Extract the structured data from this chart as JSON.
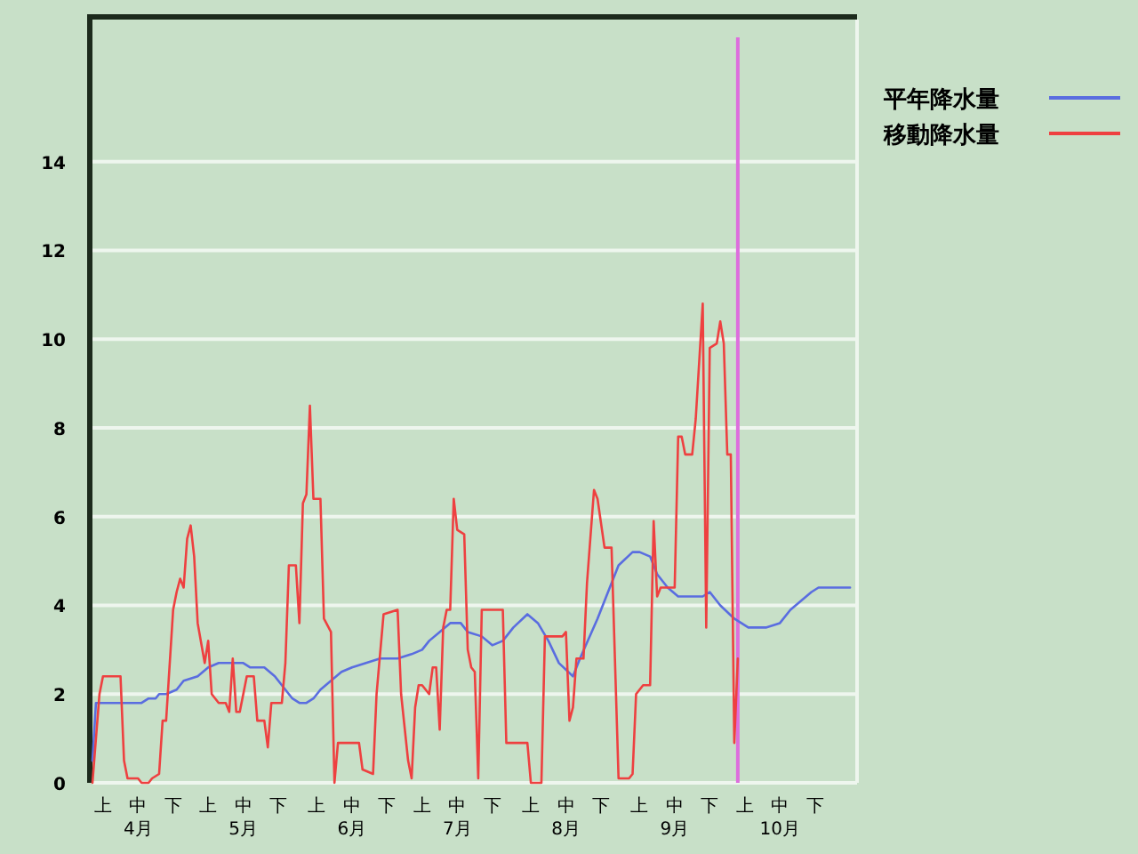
{
  "chart_data": {
    "type": "line",
    "series": [
      {
        "name": "平年降水量",
        "color": "#5a6de0",
        "x": [
          "--04-02",
          "--04-03",
          "--04-16",
          "--04-18",
          "--04-20",
          "--04-21",
          "--04-23",
          "--04-26",
          "--04-28",
          "--05-02",
          "--05-05",
          "--05-08",
          "--05-15",
          "--05-17",
          "--05-21",
          "--05-24",
          "--05-26",
          "--05-29",
          "--05-31",
          "--06-02",
          "--06-04",
          "--06-06",
          "--06-09",
          "--06-12",
          "--06-15",
          "--06-19",
          "--06-23",
          "--06-25",
          "--06-28",
          "--07-02",
          "--07-05",
          "--07-07",
          "--07-10",
          "--07-13",
          "--07-16",
          "--07-18",
          "--07-22",
          "--07-25",
          "--07-28",
          "--07-31",
          "--08-04",
          "--08-07",
          "--08-10",
          "--08-13",
          "--08-17",
          "--08-19",
          "--08-24",
          "--08-27",
          "--08-30",
          "--09-03",
          "--09-05",
          "--09-08",
          "--09-10",
          "--09-13",
          "--09-16",
          "--09-19",
          "--09-23",
          "--09-25",
          "--09-28",
          "--10-02",
          "--10-06",
          "--10-11",
          "--10-15",
          "--10-18",
          "--10-21",
          "--10-24",
          "--10-26",
          "--11-02",
          "--11-04"
        ],
        "values": [
          0.5,
          1.8,
          1.8,
          1.9,
          1.9,
          2.0,
          2.0,
          2.1,
          2.3,
          2.4,
          2.6,
          2.7,
          2.7,
          2.6,
          2.6,
          2.4,
          2.2,
          1.9,
          1.8,
          1.8,
          1.9,
          2.1,
          2.3,
          2.5,
          2.6,
          2.7,
          2.8,
          2.8,
          2.8,
          2.9,
          3.0,
          3.2,
          3.4,
          3.6,
          3.6,
          3.4,
          3.3,
          3.1,
          3.2,
          3.5,
          3.8,
          3.6,
          3.2,
          2.7,
          2.4,
          2.8,
          3.7,
          4.3,
          4.9,
          5.2,
          5.2,
          5.1,
          4.7,
          4.4,
          4.2,
          4.2,
          4.2,
          4.3,
          4.0,
          3.7,
          3.5,
          3.5,
          3.6,
          3.9,
          4.1,
          4.3,
          4.4,
          4.4,
          4.4
        ]
      },
      {
        "name": "移動降水量",
        "color": "#ee4040",
        "x": [
          "--04-02",
          "--04-04",
          "--04-05",
          "--04-10",
          "--04-11",
          "--04-12",
          "--04-15",
          "--04-16",
          "--04-18",
          "--04-19",
          "--04-21",
          "--04-22",
          "--04-23",
          "--04-25",
          "--04-26",
          "--04-27",
          "--04-28",
          "--04-29",
          "--04-30",
          "--05-01",
          "--05-02",
          "--05-04",
          "--05-05",
          "--05-06",
          "--05-08",
          "--05-10",
          "--05-11",
          "--05-12",
          "--05-13",
          "--05-14",
          "--05-16",
          "--05-18",
          "--05-19",
          "--05-21",
          "--05-22",
          "--05-23",
          "--05-26",
          "--05-27",
          "--05-28",
          "--05-30",
          "--05-31",
          "--06-01",
          "--06-02",
          "--06-03",
          "--06-04",
          "--06-06",
          "--06-07",
          "--06-09",
          "--06-10",
          "--06-11",
          "--06-17",
          "--06-18",
          "--06-21",
          "--06-22",
          "--06-24",
          "--06-28",
          "--06-29",
          "--07-01",
          "--07-02",
          "--07-03",
          "--07-04",
          "--07-05",
          "--07-07",
          "--07-08",
          "--07-09",
          "--07-10",
          "--07-11",
          "--07-12",
          "--07-13",
          "--07-14",
          "--07-15",
          "--07-17",
          "--07-18",
          "--07-19",
          "--07-20",
          "--07-21",
          "--07-22",
          "--07-28",
          "--07-29",
          "--08-04",
          "--08-05",
          "--08-08",
          "--08-09",
          "--08-14",
          "--08-15",
          "--08-16",
          "--08-17",
          "--08-18",
          "--08-20",
          "--08-21",
          "--08-23",
          "--08-24",
          "--08-26",
          "--08-28",
          "--08-30",
          "--09-02",
          "--09-03",
          "--09-04",
          "--09-06",
          "--09-08",
          "--09-09",
          "--09-10",
          "--09-11",
          "--09-15",
          "--09-16",
          "--09-17",
          "--09-18",
          "--09-20",
          "--09-21",
          "--09-23",
          "--09-24",
          "--09-25",
          "--09-27",
          "--09-28",
          "--09-29",
          "--09-30",
          "--10-01",
          "--10-02",
          "--10-03"
        ],
        "values": [
          0,
          2.0,
          2.4,
          2.4,
          0.5,
          0.1,
          0.1,
          0,
          0,
          0.1,
          0.2,
          1.4,
          1.4,
          3.9,
          4.3,
          4.6,
          4.4,
          5.5,
          5.8,
          5.1,
          3.6,
          2.7,
          3.2,
          2.0,
          1.8,
          1.8,
          1.6,
          2.8,
          1.6,
          1.6,
          2.4,
          2.4,
          1.4,
          1.4,
          0.8,
          1.8,
          1.8,
          2.7,
          4.9,
          4.9,
          3.6,
          6.3,
          6.5,
          8.5,
          6.4,
          6.4,
          3.7,
          3.4,
          0,
          0.9,
          0.9,
          0.3,
          0.2,
          2.0,
          3.8,
          3.9,
          2.0,
          0.5,
          0.1,
          1.7,
          2.2,
          2.2,
          2.0,
          2.6,
          2.6,
          1.2,
          3.5,
          3.9,
          3.9,
          6.4,
          5.7,
          5.6,
          3.0,
          2.6,
          2.5,
          0.1,
          3.9,
          3.9,
          0.9,
          0.9,
          0,
          0,
          3.3,
          3.3,
          3.4,
          1.4,
          1.7,
          2.8,
          2.8,
          4.5,
          6.6,
          6.4,
          5.3,
          5.3,
          0.1,
          0.1,
          0.2,
          2.0,
          2.2,
          2.2,
          5.9,
          4.2,
          4.4,
          4.4,
          7.8,
          7.8,
          7.4,
          7.4,
          8.2,
          10.8,
          3.5,
          9.8,
          9.9,
          10.4,
          9.9,
          7.4,
          7.4,
          0.9,
          2.8
        ]
      }
    ],
    "xlim": [
      "--04-02",
      "--11-06"
    ],
    "xticks": [
      {
        "value": "--04-05",
        "label": "上"
      },
      {
        "value": "--04-15",
        "label": "中\n4月"
      },
      {
        "value": "--04-25",
        "label": "下"
      },
      {
        "value": "--05-05",
        "label": "上"
      },
      {
        "value": "--05-15",
        "label": "中\n5月"
      },
      {
        "value": "--05-25",
        "label": "下"
      },
      {
        "value": "--06-05",
        "label": "上"
      },
      {
        "value": "--06-15",
        "label": "中\n6月"
      },
      {
        "value": "--06-25",
        "label": "下"
      },
      {
        "value": "--07-05",
        "label": "上"
      },
      {
        "value": "--07-15",
        "label": "中\n7月"
      },
      {
        "value": "--07-25",
        "label": "下"
      },
      {
        "value": "--08-05",
        "label": "上"
      },
      {
        "value": "--08-15",
        "label": "中\n8月"
      },
      {
        "value": "--08-25",
        "label": "下"
      },
      {
        "value": "--09-05",
        "label": "上"
      },
      {
        "value": "--09-15",
        "label": "中\n9月"
      },
      {
        "value": "--09-25",
        "label": "下"
      },
      {
        "value": "--10-05",
        "label": "上"
      },
      {
        "value": "--10-15",
        "label": "中\n10月"
      },
      {
        "value": "--10-25",
        "label": "下"
      }
    ],
    "ylim": [
      0,
      17.2
    ],
    "yticks": [
      0,
      2,
      4,
      6,
      8,
      10,
      12,
      14
    ],
    "grid": "y",
    "legend": "top right",
    "ref_lines": [
      {
        "axis": "x",
        "value": "--10-03",
        "color": "#dd6edd"
      }
    ]
  }
}
